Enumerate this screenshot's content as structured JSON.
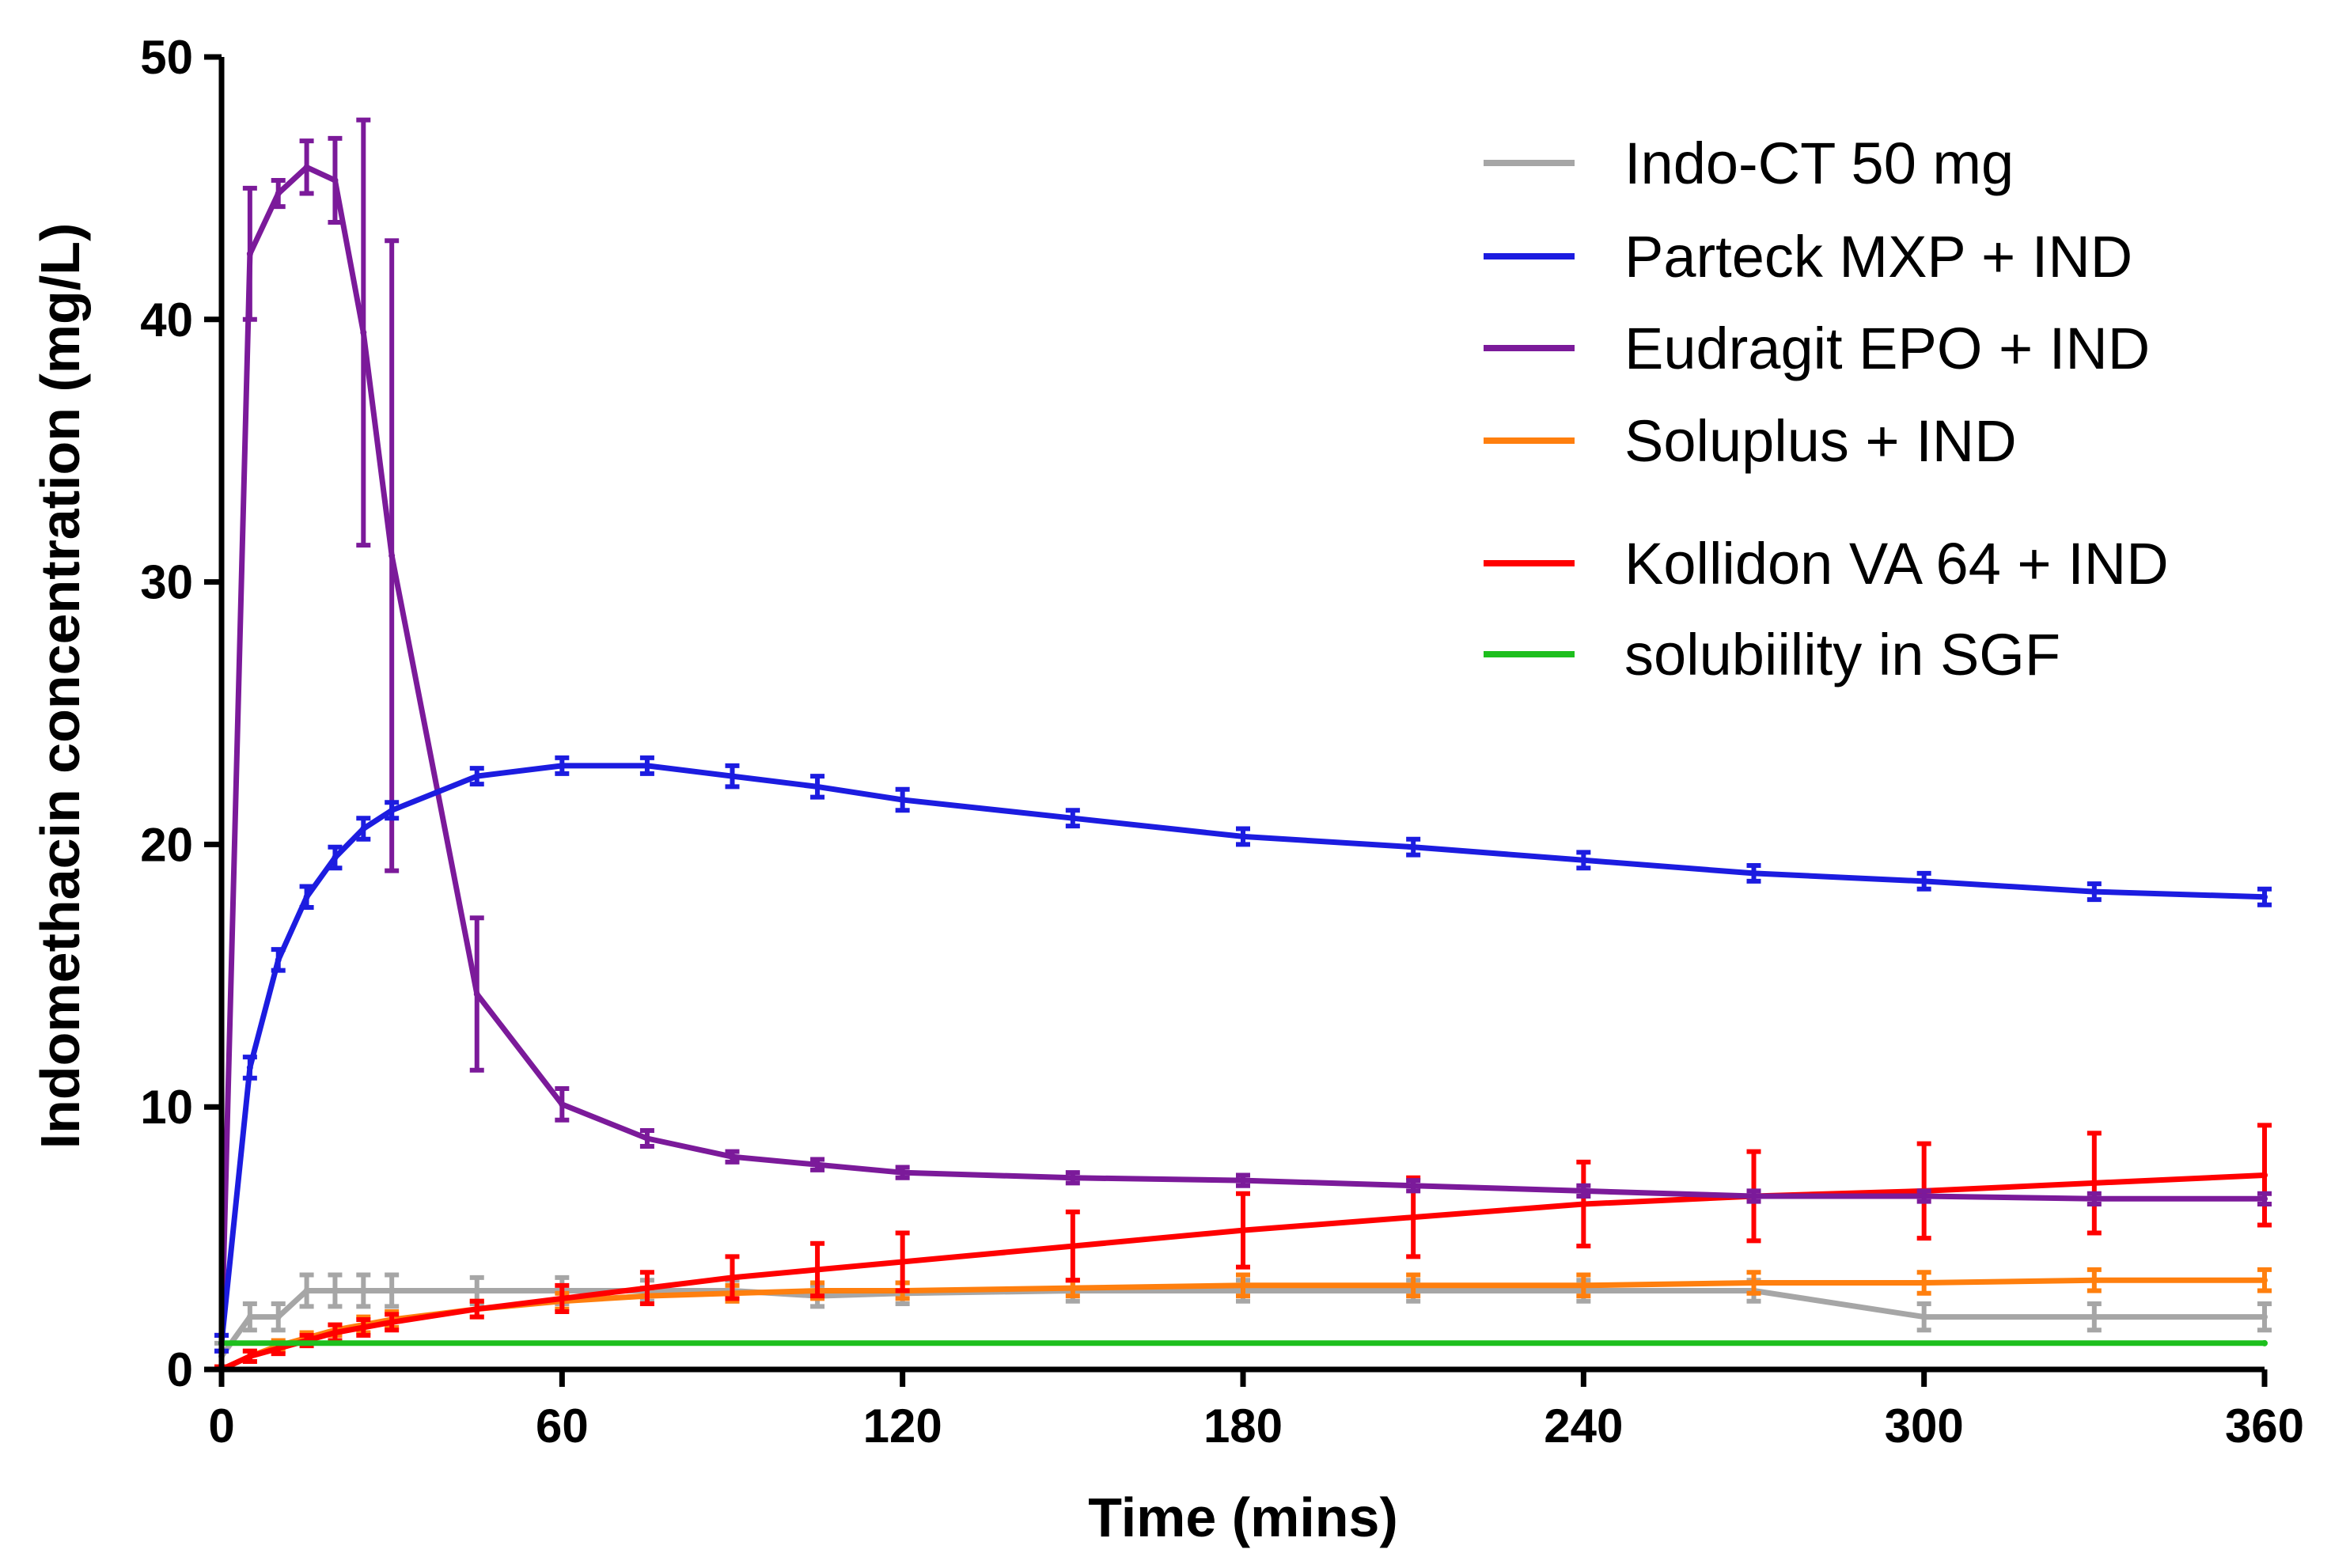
{
  "chart_data": {
    "type": "line",
    "title": "",
    "xlabel": "Time (mins)",
    "ylabel": "Indomethacin concentration (mg/L)",
    "xlim": [
      0,
      360
    ],
    "ylim": [
      0,
      50
    ],
    "xticks": [
      "0",
      "60",
      "120",
      "180",
      "240",
      "300",
      "360"
    ],
    "yticks": [
      "0",
      "10",
      "20",
      "30",
      "40",
      "50"
    ],
    "xtick_values": [
      0,
      60,
      120,
      180,
      240,
      300,
      360
    ],
    "ytick_values": [
      0,
      10,
      20,
      30,
      40,
      50
    ],
    "grid": false,
    "legend_position": "top-right",
    "series": [
      {
        "name": "Indo-CT 50 mg",
        "color": "#a6a6a6",
        "x": [
          0,
          5,
          10,
          15,
          20,
          25,
          30,
          45,
          60,
          75,
          90,
          105,
          120,
          150,
          180,
          210,
          240,
          270,
          300,
          330,
          360
        ],
        "y": [
          0.5,
          2,
          2,
          3,
          3,
          3,
          3,
          3,
          3,
          3,
          3,
          2.8,
          2.9,
          3,
          3,
          3,
          3,
          3,
          2,
          2,
          2
        ],
        "err": [
          0.5,
          0.5,
          0.5,
          0.6,
          0.6,
          0.6,
          0.6,
          0.5,
          0.5,
          0.4,
          0.4,
          0.4,
          0.4,
          0.4,
          0.4,
          0.4,
          0.4,
          0.4,
          0.5,
          0.5,
          0.5
        ]
      },
      {
        "name": "Parteck MXP + IND",
        "color": "#1c1ce0",
        "x": [
          0,
          5,
          10,
          15,
          20,
          25,
          30,
          45,
          60,
          75,
          90,
          105,
          120,
          150,
          180,
          210,
          240,
          270,
          300,
          330,
          360
        ],
        "y": [
          1,
          11.5,
          15.6,
          18,
          19.5,
          20.6,
          21.3,
          22.6,
          23,
          23,
          22.6,
          22.2,
          21.7,
          21,
          20.3,
          19.9,
          19.4,
          18.9,
          18.6,
          18.2,
          18
        ],
        "err": [
          0.3,
          0.4,
          0.4,
          0.4,
          0.4,
          0.4,
          0.3,
          0.3,
          0.3,
          0.3,
          0.4,
          0.4,
          0.4,
          0.3,
          0.3,
          0.3,
          0.3,
          0.3,
          0.3,
          0.3,
          0.3
        ]
      },
      {
        "name": "Eudragit EPO + IND",
        "color": "#7b1a9a",
        "x": [
          0,
          5,
          10,
          15,
          20,
          25,
          30,
          45,
          60,
          75,
          90,
          105,
          120,
          150,
          180,
          210,
          240,
          270,
          300,
          330,
          360
        ],
        "y": [
          1,
          42.5,
          44.8,
          45.8,
          45.3,
          39.5,
          31,
          14.3,
          10.1,
          8.8,
          8.1,
          7.8,
          7.5,
          7.3,
          7.2,
          7,
          6.8,
          6.6,
          6.6,
          6.5,
          6.5
        ],
        "err": [
          0.3,
          2.5,
          0.5,
          1,
          1.6,
          8.1,
          12,
          2.9,
          0.6,
          0.3,
          0.2,
          0.2,
          0.2,
          0.2,
          0.2,
          0.2,
          0.2,
          0.2,
          0.2,
          0.2,
          0.2
        ]
      },
      {
        "name": "Soluplus + IND",
        "color": "#ff7f0e",
        "x": [
          0,
          5,
          10,
          15,
          20,
          25,
          30,
          45,
          60,
          75,
          90,
          105,
          120,
          150,
          180,
          210,
          240,
          270,
          300,
          330,
          360
        ],
        "y": [
          0,
          0.5,
          0.9,
          1.2,
          1.5,
          1.7,
          1.9,
          2.3,
          2.6,
          2.8,
          2.9,
          3,
          3,
          3.1,
          3.2,
          3.2,
          3.2,
          3.3,
          3.3,
          3.4,
          3.4
        ],
        "err": [
          0.1,
          0.2,
          0.2,
          0.2,
          0.2,
          0.3,
          0.3,
          0.3,
          0.3,
          0.3,
          0.3,
          0.3,
          0.3,
          0.3,
          0.4,
          0.4,
          0.4,
          0.4,
          0.4,
          0.4,
          0.4
        ]
      },
      {
        "name": "Kollidon VA 64 + IND",
        "color": "#ff0000",
        "x": [
          0,
          5,
          10,
          15,
          20,
          25,
          30,
          45,
          60,
          75,
          90,
          105,
          120,
          150,
          180,
          210,
          240,
          270,
          300,
          330,
          360
        ],
        "y": [
          0,
          0.5,
          0.8,
          1.1,
          1.4,
          1.6,
          1.8,
          2.3,
          2.7,
          3.1,
          3.5,
          3.8,
          4.1,
          4.7,
          5.3,
          5.8,
          6.3,
          6.6,
          6.8,
          7.1,
          7.4
        ],
        "err": [
          0.1,
          0.2,
          0.2,
          0.2,
          0.3,
          0.3,
          0.3,
          0.3,
          0.5,
          0.6,
          0.8,
          1,
          1.1,
          1.3,
          1.4,
          1.5,
          1.6,
          1.7,
          1.8,
          1.9,
          1.9
        ]
      },
      {
        "name": "solubiility in SGF",
        "color": "#1dbf1d",
        "x": [
          0,
          360
        ],
        "y": [
          1,
          1
        ],
        "err": [
          0,
          0
        ]
      }
    ]
  }
}
